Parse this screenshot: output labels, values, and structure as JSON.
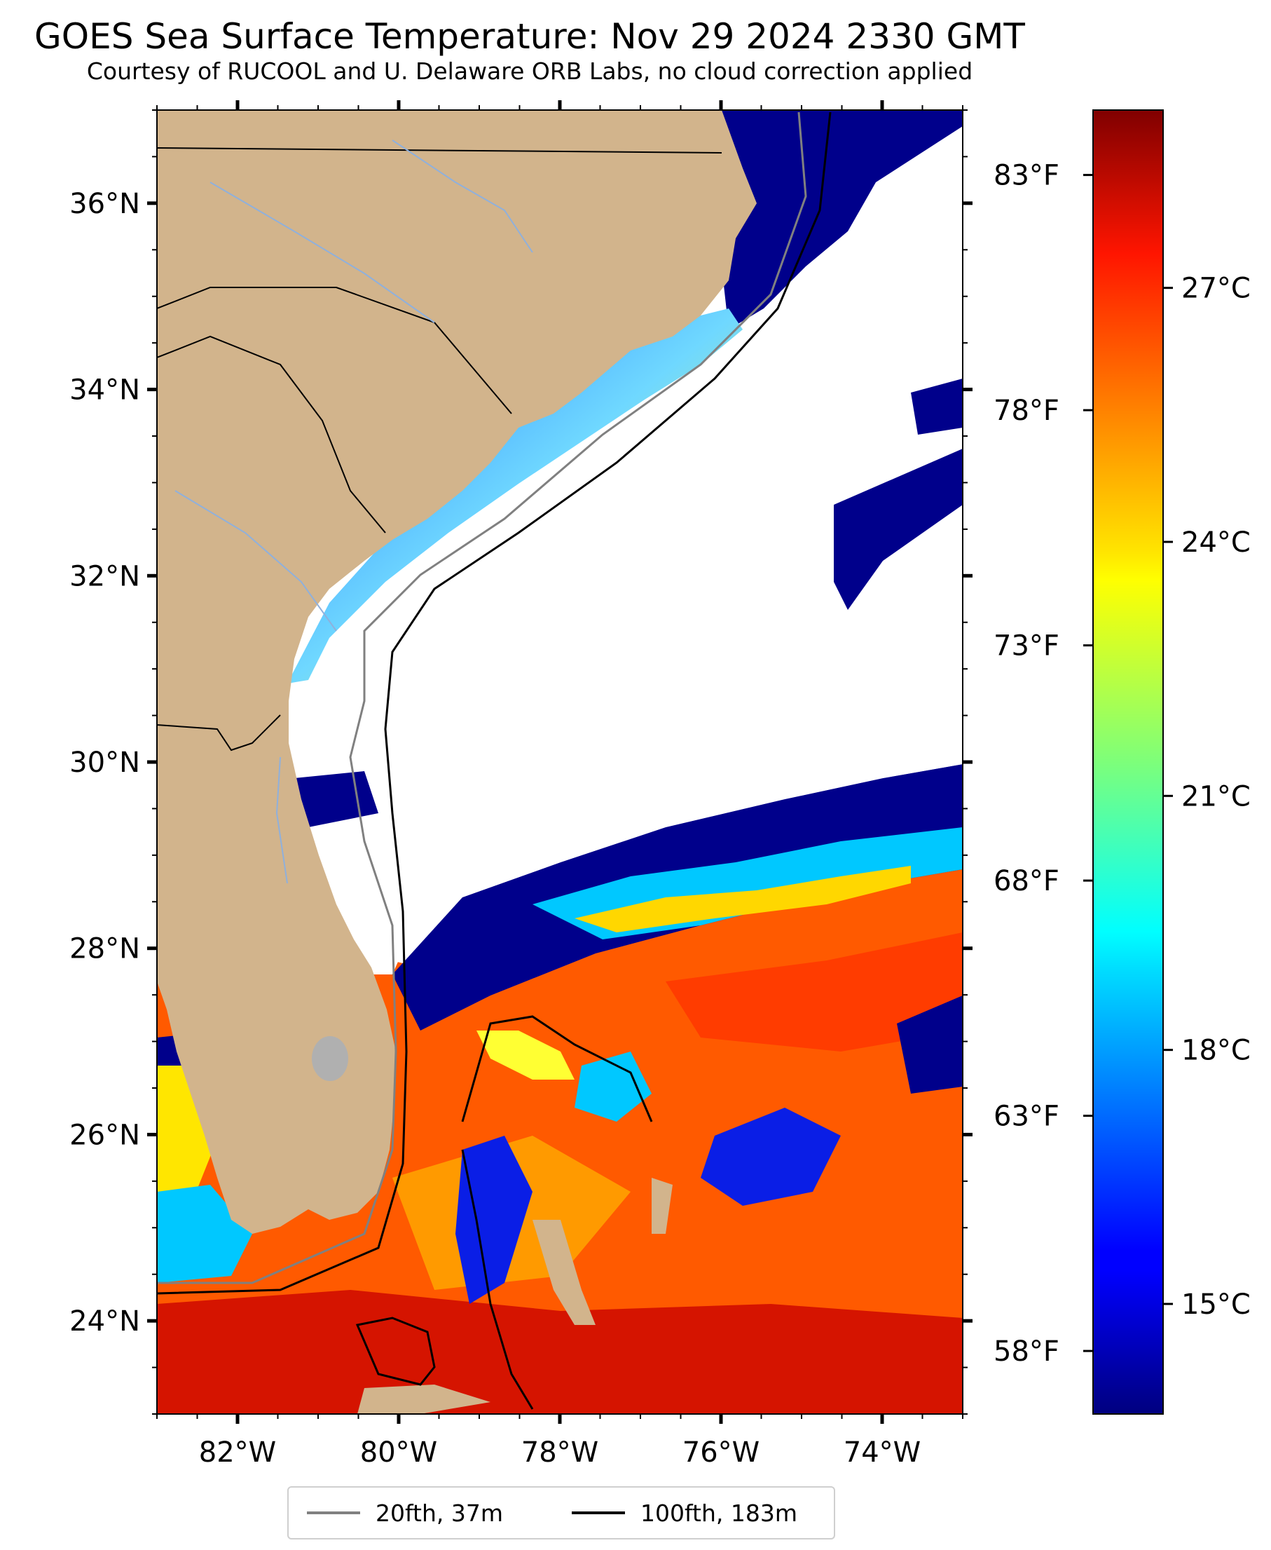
{
  "title": "GOES Sea Surface Temperature: Nov 29 2024 2330 GMT",
  "subtitle": "Courtesy of RUCOOL and U. Delaware ORB Labs, no cloud correction applied",
  "map": {
    "lon_range": [
      -83,
      -73
    ],
    "lat_range": [
      23,
      37
    ],
    "lat_labels": [
      {
        "lat": 36,
        "text": "36°N"
      },
      {
        "lat": 34,
        "text": "34°N"
      },
      {
        "lat": 32,
        "text": "32°N"
      },
      {
        "lat": 30,
        "text": "30°N"
      },
      {
        "lat": 28,
        "text": "28°N"
      },
      {
        "lat": 26,
        "text": "26°N"
      },
      {
        "lat": 24,
        "text": "24°N"
      }
    ],
    "lon_labels": [
      {
        "lon": -82,
        "text": "82°W"
      },
      {
        "lon": -80,
        "text": "80°W"
      },
      {
        "lon": -78,
        "text": "78°W"
      },
      {
        "lon": -76,
        "text": "76°W"
      },
      {
        "lon": -74,
        "text": "74°W"
      }
    ],
    "colors": {
      "land": "#d2b48c",
      "cloud": "#ffffff",
      "cold_water": "#00008b",
      "warm_water": "#ff5a00",
      "isobath_20": "#808080",
      "isobath_100": "#000000",
      "rivers": "#8fb0dc"
    }
  },
  "colorbar": {
    "min_c": 13.7,
    "max_c": 29.1,
    "fahrenheit_labels": [
      {
        "value_f": 83,
        "text": "83°F"
      },
      {
        "value_f": 78,
        "text": "78°F"
      },
      {
        "value_f": 73,
        "text": "73°F"
      },
      {
        "value_f": 68,
        "text": "68°F"
      },
      {
        "value_f": 63,
        "text": "63°F"
      },
      {
        "value_f": 58,
        "text": "58°F"
      }
    ],
    "celsius_labels": [
      {
        "value_c": 27,
        "text": "27°C"
      },
      {
        "value_c": 24,
        "text": "24°C"
      },
      {
        "value_c": 21,
        "text": "21°C"
      },
      {
        "value_c": 18,
        "text": "18°C"
      },
      {
        "value_c": 15,
        "text": "15°C"
      }
    ],
    "colormap": "jet"
  },
  "legend": {
    "items": [
      {
        "label": "20fth, 37m",
        "color": "#808080"
      },
      {
        "label": "100fth, 183m",
        "color": "#000000"
      }
    ]
  }
}
